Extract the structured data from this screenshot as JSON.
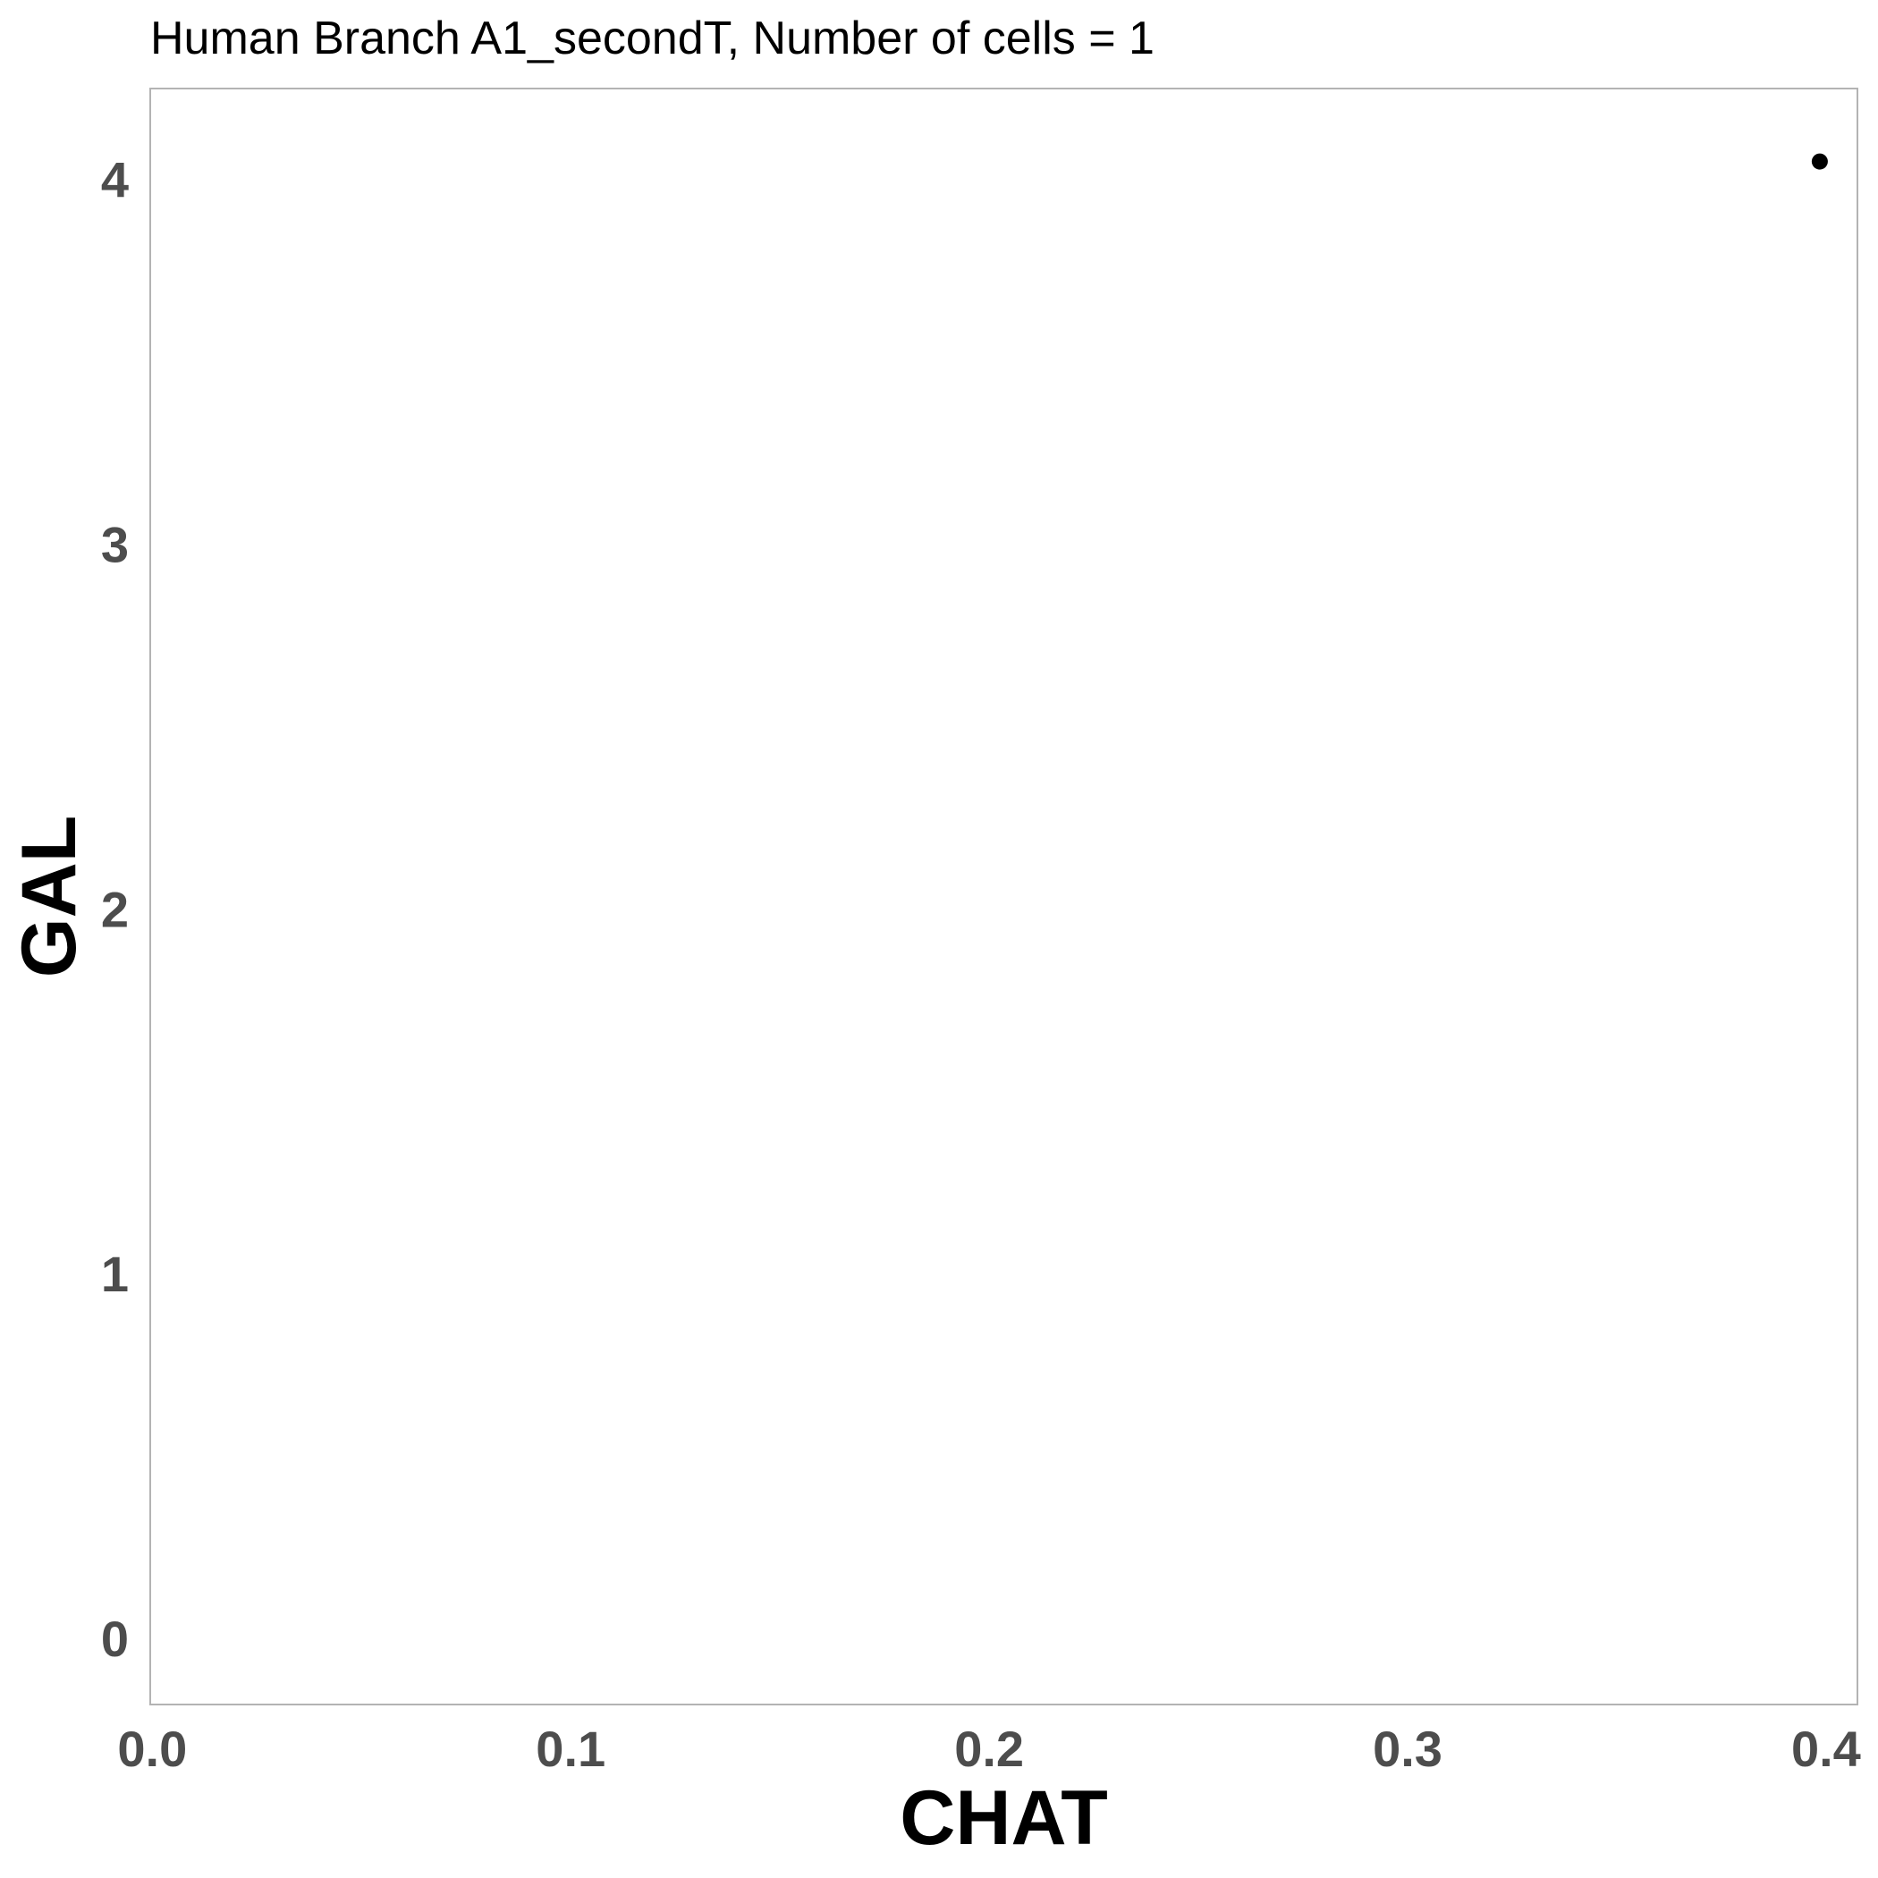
{
  "chart_data": {
    "type": "scatter",
    "title": "Human Branch A1_secondT, Number of cells = 1",
    "xlabel": "CHAT",
    "ylabel": "GAL",
    "xlim": [
      -0.0005,
      0.4075
    ],
    "ylim": [
      -0.18,
      4.25
    ],
    "x_ticks": [
      0.0,
      0.1,
      0.2,
      0.3,
      0.4
    ],
    "x_tick_labels": [
      "0.0",
      "0.1",
      "0.2",
      "0.3",
      "0.4"
    ],
    "y_ticks": [
      0,
      1,
      2,
      3,
      4
    ],
    "y_tick_labels": [
      "0",
      "1",
      "2",
      "3",
      "4"
    ],
    "grid": false,
    "series": [
      {
        "points": [
          {
            "x": 0.3985,
            "y": 4.05
          }
        ],
        "color": "#000000"
      }
    ],
    "panel_border_color": "#b3b3b3"
  }
}
